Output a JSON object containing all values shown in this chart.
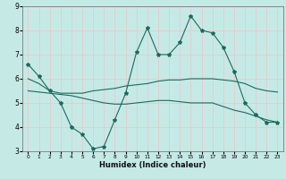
{
  "xlabel": "Humidex (Indice chaleur)",
  "xlim": [
    -0.5,
    23.5
  ],
  "ylim": [
    3,
    9
  ],
  "yticks": [
    3,
    4,
    5,
    6,
    7,
    8,
    9
  ],
  "xticks": [
    0,
    1,
    2,
    3,
    4,
    5,
    6,
    7,
    8,
    9,
    10,
    11,
    12,
    13,
    14,
    15,
    16,
    17,
    18,
    19,
    20,
    21,
    22,
    23
  ],
  "bg_color": "#c5eae6",
  "grid_color": "#e8c8cc",
  "line_color": "#1a6b60",
  "line1_x": [
    0,
    1,
    2,
    3,
    4,
    5,
    6,
    7,
    8,
    9,
    10,
    11,
    12,
    13,
    14,
    15,
    16,
    17,
    18,
    19,
    20,
    21,
    22,
    23
  ],
  "line1_y": [
    6.6,
    6.1,
    5.5,
    5.0,
    4.0,
    3.7,
    3.1,
    3.2,
    4.3,
    5.4,
    7.1,
    8.1,
    7.0,
    7.0,
    7.5,
    8.6,
    8.0,
    7.9,
    7.3,
    6.3,
    5.0,
    4.5,
    4.2,
    4.2
  ],
  "line2_x": [
    0,
    1,
    2,
    3,
    4,
    5,
    6,
    7,
    8,
    9,
    10,
    11,
    12,
    13,
    14,
    15,
    16,
    17,
    18,
    19,
    20,
    21,
    22,
    23
  ],
  "line2_y": [
    6.0,
    5.8,
    5.5,
    5.4,
    5.4,
    5.4,
    5.5,
    5.55,
    5.6,
    5.7,
    5.75,
    5.8,
    5.9,
    5.95,
    5.95,
    6.0,
    6.0,
    6.0,
    5.95,
    5.9,
    5.8,
    5.6,
    5.5,
    5.45
  ],
  "line3_x": [
    0,
    1,
    2,
    3,
    4,
    5,
    6,
    7,
    8,
    9,
    10,
    11,
    12,
    13,
    14,
    15,
    16,
    17,
    18,
    19,
    20,
    21,
    22,
    23
  ],
  "line3_y": [
    5.5,
    5.45,
    5.4,
    5.35,
    5.3,
    5.2,
    5.1,
    5.0,
    4.95,
    4.95,
    5.0,
    5.05,
    5.1,
    5.1,
    5.05,
    5.0,
    5.0,
    5.0,
    4.85,
    4.7,
    4.6,
    4.45,
    4.3,
    4.2
  ]
}
